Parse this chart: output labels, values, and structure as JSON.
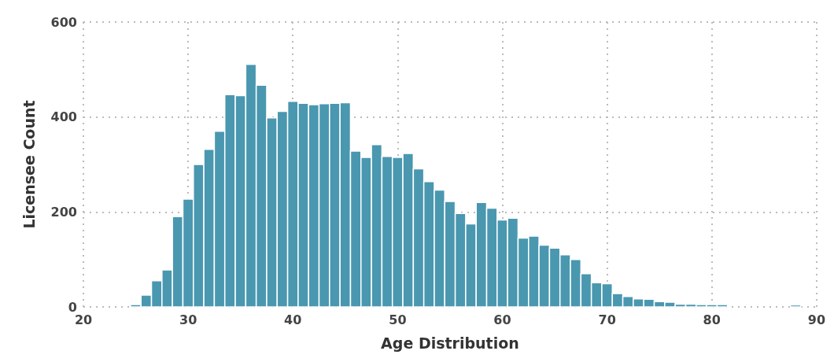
{
  "chart_data": {
    "type": "histogram",
    "xlabel": "Age Distribution",
    "ylabel": "Licensee Count",
    "color": "#4a97b0",
    "bins": [
      24.5,
      25.5,
      26.5,
      27.5,
      28.5,
      29.5,
      30.5,
      31.5,
      32.5,
      33.5,
      34.5,
      35.5,
      36.5,
      37.5,
      38.5,
      39.5,
      40.5,
      41.5,
      42.5,
      43.5,
      44.5,
      45.5,
      46.5,
      47.5,
      48.5,
      49.5,
      50.5,
      51.5,
      52.5,
      53.5,
      54.5,
      55.5,
      56.5,
      57.5,
      58.5,
      59.5,
      60.5,
      61.5,
      62.5,
      63.5,
      64.5,
      65.5,
      66.5,
      67.5,
      68.5,
      69.5,
      70.5,
      71.5,
      72.5,
      73.5,
      74.5,
      75.5,
      76.5,
      77.5,
      78.5,
      79.5,
      80.5,
      81.5,
      82.5,
      83.5,
      84.5,
      85.5,
      86.5,
      87.5,
      88.5
    ],
    "values": [
      5,
      25,
      55,
      78,
      190,
      227,
      300,
      332,
      370,
      447,
      445,
      511,
      467,
      398,
      412,
      433,
      429,
      426,
      428,
      429,
      430,
      328,
      315,
      342,
      317,
      315,
      323,
      291,
      264,
      246,
      222,
      197,
      175,
      220,
      208,
      183,
      187,
      145,
      149,
      130,
      124,
      110,
      100,
      70,
      51,
      49,
      28,
      22,
      17,
      16,
      11,
      10,
      6,
      6,
      5,
      5,
      5,
      0,
      0,
      0,
      0,
      0,
      0,
      4
    ],
    "xlim": [
      20,
      90
    ],
    "xticks": [
      20,
      30,
      40,
      50,
      60,
      70,
      80,
      90
    ],
    "ylim": [
      0,
      600
    ],
    "yticks": [
      0,
      200,
      400,
      600
    ],
    "grid": true
  }
}
